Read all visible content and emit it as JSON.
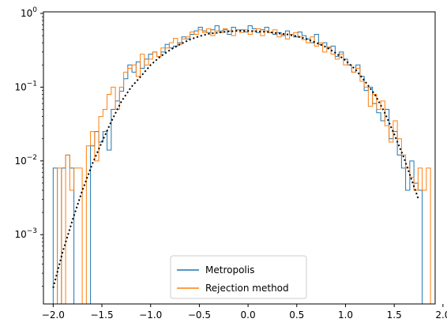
{
  "chart_data": {
    "type": "histogram",
    "title": "",
    "xlabel": "",
    "ylabel": "",
    "xlim": [
      -2.1,
      1.92
    ],
    "ylim": [
      0.000115,
      1.05
    ],
    "yscale": "log",
    "grid": false,
    "legend_position": "bottom-center",
    "x_ticks": [
      {
        "value": -2.0,
        "label": "−2.0"
      },
      {
        "value": -1.5,
        "label": "−1.5"
      },
      {
        "value": -1.0,
        "label": "−1.0"
      },
      {
        "value": -0.5,
        "label": "−0.5"
      },
      {
        "value": 0.0,
        "label": "0.0"
      },
      {
        "value": 0.5,
        "label": "0.5"
      },
      {
        "value": 1.0,
        "label": "1.0"
      },
      {
        "value": 1.5,
        "label": "1.5"
      },
      {
        "value": 2.0,
        "label": "2.0"
      }
    ],
    "y_ticks": [
      {
        "value": 0.001,
        "base": "10",
        "exp": "−3"
      },
      {
        "value": 0.01,
        "base": "10",
        "exp": "−2"
      },
      {
        "value": 0.1,
        "base": "10",
        "exp": "−1"
      },
      {
        "value": 1.0,
        "base": "10",
        "exp": "0"
      }
    ],
    "series": [
      {
        "name": "Metropolis",
        "color": "#1f77b4",
        "bin_edges": [
          -2.0,
          -1.9574,
          -1.9149,
          -1.8723,
          -1.8298,
          -1.7872,
          -1.7447,
          -1.7021,
          -1.6596,
          -1.617,
          -1.5745,
          -1.5319,
          -1.4894,
          -1.4468,
          -1.4043,
          -1.3617,
          -1.3191,
          -1.2766,
          -1.234,
          -1.1915,
          -1.1489,
          -1.1064,
          -1.0638,
          -1.0213,
          -0.9787,
          -0.9362,
          -0.8936,
          -0.8511,
          -0.8085,
          -0.766,
          -0.7234,
          -0.6809,
          -0.6383,
          -0.5957,
          -0.5532,
          -0.5106,
          -0.4681,
          -0.4255,
          -0.383,
          -0.3404,
          -0.2979,
          -0.2553,
          -0.2128,
          -0.1702,
          -0.1277,
          -0.0851,
          -0.0426,
          0.0,
          0.0426,
          0.0851,
          0.1277,
          0.1702,
          0.2128,
          0.2553,
          0.2979,
          0.3404,
          0.383,
          0.4255,
          0.4681,
          0.5106,
          0.5532,
          0.5957,
          0.6383,
          0.6809,
          0.7234,
          0.766,
          0.8085,
          0.8511,
          0.8936,
          0.9362,
          0.9787,
          1.0213,
          1.0638,
          1.1064,
          1.1489,
          1.1915,
          1.234,
          1.2766,
          1.3191,
          1.3617,
          1.4043,
          1.4468,
          1.4894,
          1.5319,
          1.5745,
          1.617,
          1.6596,
          1.7021,
          1.7447,
          1.7872,
          1.8298
        ],
        "values": [
          0.008,
          0.0,
          0.008,
          0.012,
          0.008,
          0.0,
          0.0,
          0.0,
          0.0,
          0.016,
          0.025,
          0.018,
          0.025,
          0.014,
          0.05,
          0.065,
          0.088,
          0.13,
          0.2,
          0.16,
          0.22,
          0.18,
          0.24,
          0.28,
          0.3,
          0.26,
          0.3,
          0.38,
          0.34,
          0.36,
          0.4,
          0.48,
          0.45,
          0.52,
          0.58,
          0.65,
          0.58,
          0.55,
          0.6,
          0.68,
          0.58,
          0.6,
          0.52,
          0.65,
          0.6,
          0.6,
          0.56,
          0.68,
          0.62,
          0.55,
          0.6,
          0.65,
          0.55,
          0.52,
          0.55,
          0.5,
          0.58,
          0.52,
          0.48,
          0.56,
          0.5,
          0.45,
          0.4,
          0.52,
          0.38,
          0.4,
          0.34,
          0.36,
          0.26,
          0.3,
          0.24,
          0.2,
          0.16,
          0.2,
          0.14,
          0.09,
          0.1,
          0.06,
          0.045,
          0.035,
          0.05,
          0.02,
          0.025,
          0.012,
          0.008,
          0.004,
          0.01,
          0.005,
          0.004,
          0.0
        ]
      },
      {
        "name": "Rejection method",
        "color": "#ff7f0e",
        "bin_edges": [
          -2.0,
          -1.9574,
          -1.9149,
          -1.8723,
          -1.8298,
          -1.7872,
          -1.7447,
          -1.7021,
          -1.6596,
          -1.617,
          -1.5745,
          -1.5319,
          -1.4894,
          -1.4468,
          -1.4043,
          -1.3617,
          -1.3191,
          -1.2766,
          -1.234,
          -1.1915,
          -1.1489,
          -1.1064,
          -1.0638,
          -1.0213,
          -0.9787,
          -0.9362,
          -0.8936,
          -0.8511,
          -0.8085,
          -0.766,
          -0.7234,
          -0.6809,
          -0.6383,
          -0.5957,
          -0.5532,
          -0.5106,
          -0.4681,
          -0.4255,
          -0.383,
          -0.3404,
          -0.2979,
          -0.2553,
          -0.2128,
          -0.1702,
          -0.1277,
          -0.0851,
          -0.0426,
          0.0,
          0.0426,
          0.0851,
          0.1277,
          0.1702,
          0.2128,
          0.2553,
          0.2979,
          0.3404,
          0.383,
          0.4255,
          0.4681,
          0.5106,
          0.5532,
          0.5957,
          0.6383,
          0.6809,
          0.7234,
          0.766,
          0.8085,
          0.8511,
          0.8936,
          0.9362,
          0.9787,
          1.0213,
          1.0638,
          1.1064,
          1.1489,
          1.1915,
          1.234,
          1.2766,
          1.3191,
          1.3617,
          1.4043,
          1.4468,
          1.4894,
          1.5319,
          1.5745,
          1.617,
          1.6596,
          1.7021,
          1.7447,
          1.7872,
          1.8298,
          1.8723
        ],
        "values": [
          0.0,
          0.008,
          0.0,
          0.012,
          0.004,
          0.008,
          0.008,
          0.0,
          0.016,
          0.025,
          0.01,
          0.04,
          0.05,
          0.08,
          0.1,
          0.05,
          0.1,
          0.16,
          0.18,
          0.2,
          0.14,
          0.28,
          0.2,
          0.24,
          0.3,
          0.26,
          0.34,
          0.34,
          0.4,
          0.46,
          0.38,
          0.45,
          0.48,
          0.56,
          0.52,
          0.6,
          0.55,
          0.62,
          0.5,
          0.58,
          0.55,
          0.62,
          0.58,
          0.5,
          0.6,
          0.55,
          0.6,
          0.52,
          0.58,
          0.62,
          0.5,
          0.58,
          0.55,
          0.6,
          0.48,
          0.52,
          0.45,
          0.52,
          0.55,
          0.48,
          0.44,
          0.4,
          0.48,
          0.36,
          0.4,
          0.3,
          0.35,
          0.28,
          0.24,
          0.28,
          0.2,
          0.2,
          0.16,
          0.18,
          0.12,
          0.1,
          0.055,
          0.08,
          0.05,
          0.065,
          0.03,
          0.018,
          0.035,
          0.02,
          0.012,
          0.008,
          0.006,
          0.004,
          0.008,
          0.004,
          0.008,
          0.0
        ]
      }
    ],
    "reference_curve": {
      "style": "dotted",
      "color": "#000000",
      "x": [
        -2.0,
        -1.9,
        -1.8,
        -1.7,
        -1.6,
        -1.5,
        -1.4,
        -1.3,
        -1.2,
        -1.1,
        -1.0,
        -0.9,
        -0.8,
        -0.7,
        -0.6,
        -0.5,
        -0.4,
        -0.3,
        -0.2,
        -0.1,
        0.0,
        0.1,
        0.2,
        0.3,
        0.4,
        0.5,
        0.6,
        0.7,
        0.8,
        0.9,
        1.0,
        1.1,
        1.2,
        1.3,
        1.4,
        1.5,
        1.6,
        1.7,
        1.75
      ],
      "y": [
        0.00019,
        0.0006,
        0.0016,
        0.004,
        0.009,
        0.018,
        0.035,
        0.064,
        0.1,
        0.14,
        0.2,
        0.26,
        0.32,
        0.38,
        0.44,
        0.49,
        0.53,
        0.55,
        0.57,
        0.58,
        0.58,
        0.57,
        0.56,
        0.54,
        0.52,
        0.49,
        0.45,
        0.4,
        0.35,
        0.29,
        0.23,
        0.175,
        0.12,
        0.08,
        0.046,
        0.023,
        0.011,
        0.0046,
        0.003
      ]
    }
  }
}
